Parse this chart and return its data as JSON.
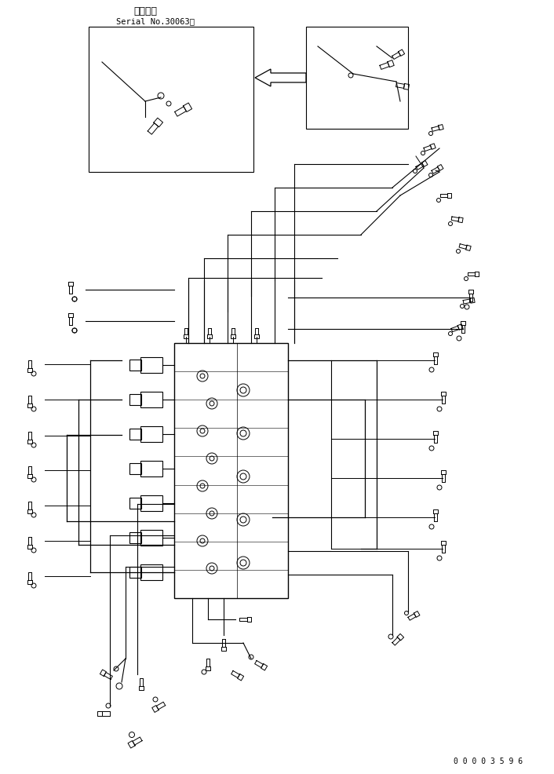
{
  "title_line1": "適用号機",
  "title_line2": "Serial No.30063～",
  "part_number": "0 0 0 0 3 5 9 6",
  "bg_color": "#ffffff",
  "line_color": "#000000",
  "fig_width": 7.06,
  "fig_height": 9.87,
  "dpi": 100
}
